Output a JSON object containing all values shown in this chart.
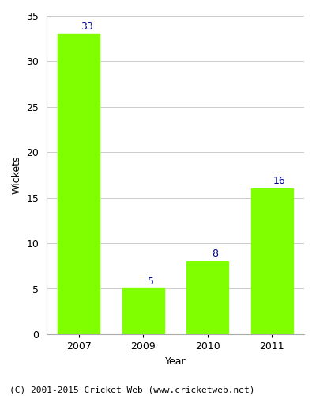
{
  "categories": [
    "2007",
    "2009",
    "2010",
    "2011"
  ],
  "values": [
    33,
    5,
    8,
    16
  ],
  "bar_color": "#7fff00",
  "bar_edgecolor": "#7fff00",
  "label_color": "#00008b",
  "xlabel": "Year",
  "ylabel": "Wickets",
  "ylim": [
    0,
    35
  ],
  "yticks": [
    0,
    5,
    10,
    15,
    20,
    25,
    30,
    35
  ],
  "label_fontsize": 9,
  "axis_label_fontsize": 9,
  "tick_fontsize": 9,
  "footer": "(C) 2001-2015 Cricket Web (www.cricketweb.net)",
  "footer_fontsize": 8,
  "bg_color": "#ffffff",
  "grid_color": "#cccccc",
  "bar_width": 0.65
}
